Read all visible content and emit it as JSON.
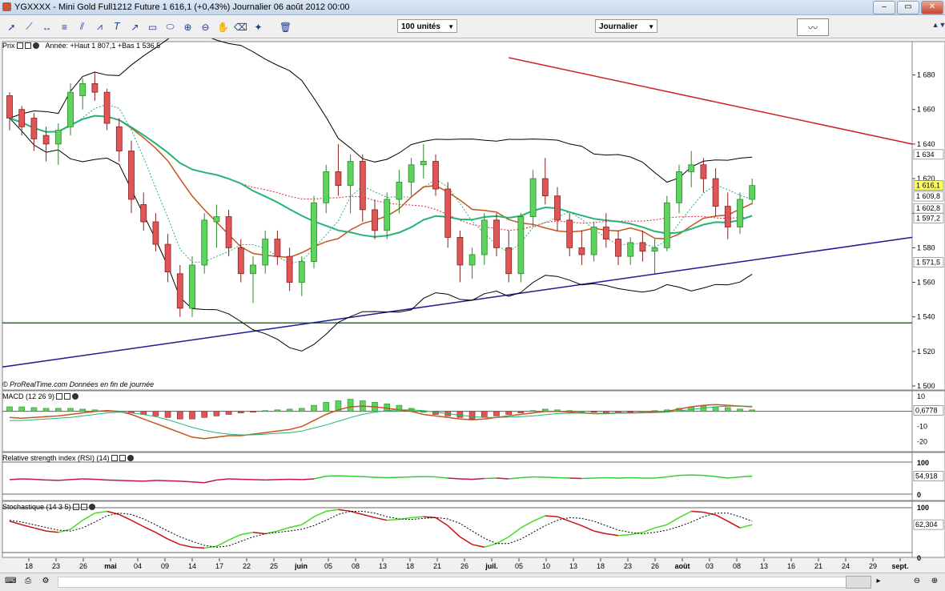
{
  "window": {
    "title": "YGXXXX - Mini Gold Full1212 Future    1 616,1 (+0,43%)   Journalier  06 août 2012 00:00",
    "buttons": [
      "–",
      "▭",
      "✕"
    ]
  },
  "toolbar": {
    "icons": [
      "pointer-icon",
      "line-tool-icon",
      "horizontal-line-icon",
      "fibonacci-icon",
      "channel-icon",
      "regression-icon",
      "text-tool-icon",
      "arrow-tool-icon",
      "rectangle-tool-icon",
      "ellipse-tool-icon",
      "zoom-in-icon",
      "zoom-out-icon",
      "hand-tool-icon",
      "eraser-icon",
      "magic-wand-icon",
      "delete-icon"
    ],
    "units_select": "100 unités",
    "period_select": "Journalier"
  },
  "panes": {
    "price": {
      "label": "Prix",
      "info": "Année: +Haut 1 807,1 +Bas 1 536,5",
      "watermark": "© ProRealTime.com  Données en fin de journée"
    },
    "macd": {
      "label": "MACD (12 26 9)"
    },
    "rsi": {
      "label": "Relative strength index (RSI) (14)"
    },
    "stoch": {
      "label": "Stochastique (14 3 5)"
    }
  },
  "colors": {
    "bull": "#5ed35e",
    "bear": "#e05555",
    "bull_border": "#2a8a2a",
    "bear_border": "#8a2020",
    "ma_orange": "#c8541d",
    "ma_green": "#22b573",
    "resistance": "#cc2222",
    "support": "#1a1a9a",
    "horizontal": "#2a6a2a",
    "tag_current": "#ffff66"
  },
  "chart_data": [
    {
      "type": "candlestick",
      "title": "Mini Gold Full1212 Future",
      "ylim": [
        1500,
        1690
      ],
      "y_ticks": [
        1500,
        1520,
        1540,
        1560,
        1580,
        1600,
        1620,
        1640,
        1660,
        1680
      ],
      "y_tick_labels": [
        "1 500",
        "1 520",
        "1 540",
        "1 560",
        "1 580",
        "1 600",
        "1 620",
        "1 640",
        "1 660",
        "1 680"
      ],
      "x_tick_labels": [
        "18",
        "23",
        "26",
        "mai",
        "04",
        "09",
        "14",
        "17",
        "22",
        "25",
        "juin",
        "05",
        "08",
        "13",
        "18",
        "21",
        "26",
        "juil.",
        "05",
        "10",
        "13",
        "18",
        "23",
        "26",
        "août",
        "03",
        "08",
        "13",
        "16",
        "21",
        "24",
        "29",
        "sept."
      ],
      "price_tags": [
        {
          "label": "1 634",
          "value": 1634,
          "color": "#ffffff"
        },
        {
          "label": "1 616,1",
          "value": 1616.1,
          "color": "#ffff66"
        },
        {
          "label": "1 609,8",
          "value": 1609.8,
          "color": "#ffffff"
        },
        {
          "label": "1 602,8",
          "value": 1602.8,
          "color": "#ffffff"
        },
        {
          "label": "1 597,2",
          "value": 1597.2,
          "color": "#ffffff"
        },
        {
          "label": "1 571,5",
          "value": 1571.5,
          "color": "#ffffff"
        }
      ],
      "candles": [
        [
          1668,
          1670,
          1648,
          1655
        ],
        [
          1660,
          1662,
          1645,
          1650
        ],
        [
          1655,
          1658,
          1636,
          1643
        ],
        [
          1645,
          1650,
          1630,
          1640
        ],
        [
          1640,
          1652,
          1628,
          1648
        ],
        [
          1650,
          1675,
          1645,
          1670
        ],
        [
          1668,
          1678,
          1660,
          1675
        ],
        [
          1675,
          1682,
          1665,
          1670
        ],
        [
          1670,
          1672,
          1648,
          1652
        ],
        [
          1650,
          1655,
          1630,
          1636
        ],
        [
          1636,
          1642,
          1600,
          1608
        ],
        [
          1605,
          1612,
          1590,
          1595
        ],
        [
          1595,
          1600,
          1578,
          1582
        ],
        [
          1582,
          1588,
          1560,
          1566
        ],
        [
          1565,
          1570,
          1540,
          1545
        ],
        [
          1545,
          1575,
          1540,
          1570
        ],
        [
          1570,
          1600,
          1565,
          1596
        ],
        [
          1595,
          1605,
          1580,
          1598
        ],
        [
          1598,
          1602,
          1575,
          1580
        ],
        [
          1580,
          1585,
          1560,
          1565
        ],
        [
          1565,
          1575,
          1548,
          1570
        ],
        [
          1570,
          1590,
          1565,
          1585
        ],
        [
          1585,
          1590,
          1570,
          1575
        ],
        [
          1575,
          1580,
          1555,
          1560
        ],
        [
          1560,
          1575,
          1552,
          1572
        ],
        [
          1572,
          1610,
          1568,
          1606
        ],
        [
          1606,
          1628,
          1600,
          1624
        ],
        [
          1624,
          1640,
          1610,
          1616
        ],
        [
          1616,
          1634,
          1600,
          1630
        ],
        [
          1630,
          1634,
          1595,
          1602
        ],
        [
          1602,
          1608,
          1585,
          1590
        ],
        [
          1590,
          1612,
          1585,
          1608
        ],
        [
          1608,
          1625,
          1600,
          1618
        ],
        [
          1618,
          1632,
          1610,
          1628
        ],
        [
          1628,
          1640,
          1620,
          1630
        ],
        [
          1630,
          1634,
          1610,
          1614
        ],
        [
          1614,
          1618,
          1580,
          1586
        ],
        [
          1586,
          1590,
          1560,
          1570
        ],
        [
          1570,
          1580,
          1562,
          1576
        ],
        [
          1576,
          1600,
          1570,
          1596
        ],
        [
          1596,
          1600,
          1575,
          1580
        ],
        [
          1580,
          1590,
          1560,
          1565
        ],
        [
          1565,
          1600,
          1560,
          1598
        ],
        [
          1598,
          1625,
          1592,
          1620
        ],
        [
          1620,
          1632,
          1605,
          1610
        ],
        [
          1610,
          1615,
          1590,
          1596
        ],
        [
          1596,
          1600,
          1575,
          1580
        ],
        [
          1580,
          1590,
          1570,
          1576
        ],
        [
          1576,
          1595,
          1572,
          1592
        ],
        [
          1592,
          1600,
          1580,
          1585
        ],
        [
          1585,
          1590,
          1570,
          1575
        ],
        [
          1575,
          1586,
          1570,
          1583
        ],
        [
          1583,
          1590,
          1572,
          1578
        ],
        [
          1578,
          1585,
          1565,
          1580
        ],
        [
          1580,
          1610,
          1578,
          1606
        ],
        [
          1606,
          1628,
          1600,
          1624
        ],
        [
          1624,
          1636,
          1615,
          1628
        ],
        [
          1628,
          1632,
          1612,
          1620
        ],
        [
          1620,
          1626,
          1598,
          1604
        ],
        [
          1604,
          1612,
          1585,
          1592
        ],
        [
          1592,
          1612,
          1588,
          1608
        ],
        [
          1608,
          1620,
          1605,
          1616
        ]
      ]
    },
    {
      "type": "bar+line",
      "name": "MACD (12 26 9)",
      "y_ticks": [
        10,
        0,
        -10,
        -20
      ],
      "y_tick_labels": [
        "10",
        "0",
        "-10",
        "-20"
      ],
      "ylim": [
        -25,
        12
      ],
      "current_label": "0,6778",
      "histogram": [
        3,
        3,
        2.5,
        2,
        2,
        2,
        1.5,
        1,
        0.5,
        0,
        -1,
        -2,
        -3,
        -4,
        -5,
        -5,
        -4,
        -3,
        -2,
        -1,
        -0.5,
        0.5,
        1,
        1.5,
        2,
        4,
        6,
        7,
        8,
        7,
        6,
        5,
        4,
        2,
        0,
        -2,
        -3,
        -4,
        -5,
        -4,
        -3,
        -2,
        -1,
        0.5,
        1.5,
        1,
        0.5,
        0,
        -0.5,
        -1,
        -1,
        -0.5,
        0,
        0.5,
        1,
        2,
        3,
        3.5,
        3,
        2.5,
        1.5,
        1
      ],
      "macd": [
        -4,
        -4.5,
        -4,
        -3.5,
        -3,
        -2,
        -1,
        0,
        0.5,
        0,
        -2,
        -5,
        -8,
        -11,
        -14,
        -17,
        -18,
        -17,
        -16,
        -16,
        -15,
        -14,
        -13,
        -12,
        -10,
        -6,
        -2,
        1,
        3,
        3.5,
        3,
        2,
        1,
        0,
        -2,
        -3,
        -4,
        -5,
        -5.5,
        -5,
        -4,
        -3,
        -2,
        -1,
        0,
        0,
        -0.5,
        -1,
        -1.5,
        -1.5,
        -1,
        -1,
        -0.8,
        -0.5,
        0,
        1.5,
        3,
        4,
        4.5,
        4,
        3.5,
        3
      ],
      "signal": [
        -6,
        -6,
        -5.5,
        -5,
        -4.5,
        -4,
        -3,
        -2,
        -1,
        -0.5,
        -1,
        -2,
        -3.5,
        -5.5,
        -8,
        -10.5,
        -12.5,
        -14,
        -15,
        -15.5,
        -15.5,
        -15,
        -14.5,
        -14,
        -13,
        -11,
        -9,
        -6.5,
        -4,
        -2,
        -0.5,
        0.5,
        1,
        1,
        0.5,
        -0.5,
        -1.5,
        -2.5,
        -3.5,
        -4,
        -4,
        -3.8,
        -3.5,
        -3,
        -2.2,
        -1.5,
        -1.2,
        -1.1,
        -1.2,
        -1.3,
        -1.2,
        -1.1,
        -1,
        -0.8,
        -0.5,
        0.3,
        1.2,
        2.2,
        3,
        3.4,
        3.5,
        3.4
      ]
    },
    {
      "type": "line",
      "name": "Relative strength index (RSI) (14)",
      "y_ticks": [
        100,
        0
      ],
      "ylim": [
        0,
        100
      ],
      "current_label": "54,918",
      "values": [
        46,
        48,
        47,
        45,
        44,
        46,
        48,
        47,
        45,
        44,
        43,
        42,
        44,
        43,
        42,
        40,
        38,
        45,
        48,
        47,
        46,
        45,
        46,
        47,
        46,
        48,
        55,
        56,
        55,
        54,
        52,
        51,
        52,
        53,
        54,
        53,
        50,
        48,
        47,
        49,
        50,
        48,
        51,
        53,
        52,
        51,
        50,
        49,
        50,
        51,
        50,
        51,
        50,
        50,
        53,
        57,
        58,
        57,
        54,
        50,
        53,
        55
      ]
    },
    {
      "type": "line",
      "name": "Stochastique (14 3 5)",
      "y_ticks": [
        100,
        0
      ],
      "ylim": [
        0,
        100
      ],
      "current_label": "62,304",
      "k": [
        70,
        62,
        55,
        48,
        45,
        52,
        72,
        88,
        92,
        85,
        72,
        58,
        45,
        30,
        18,
        12,
        10,
        14,
        28,
        40,
        45,
        42,
        48,
        56,
        62,
        80,
        92,
        96,
        92,
        85,
        78,
        72,
        74,
        78,
        80,
        78,
        60,
        35,
        18,
        12,
        20,
        35,
        55,
        70,
        82,
        80,
        70,
        60,
        48,
        42,
        38,
        40,
        45,
        55,
        62,
        78,
        92,
        90,
        84,
        70,
        55,
        62
      ],
      "d": [
        72,
        68,
        62,
        56,
        50,
        48,
        55,
        68,
        82,
        88,
        85,
        75,
        62,
        48,
        35,
        25,
        16,
        12,
        15,
        25,
        35,
        42,
        45,
        48,
        52,
        60,
        72,
        85,
        92,
        92,
        88,
        80,
        75,
        74,
        76,
        78,
        75,
        65,
        48,
        32,
        20,
        20,
        30,
        45,
        60,
        72,
        78,
        76,
        70,
        60,
        50,
        45,
        42,
        45,
        50,
        58,
        68,
        80,
        88,
        88,
        80,
        70
      ]
    }
  ],
  "scrollbar": {
    "left_icons": [
      "keyboard-icon",
      "print-icon",
      "settings-icon"
    ],
    "right_icons": [
      "zoom-out-icon",
      "zoom-in-icon"
    ]
  }
}
